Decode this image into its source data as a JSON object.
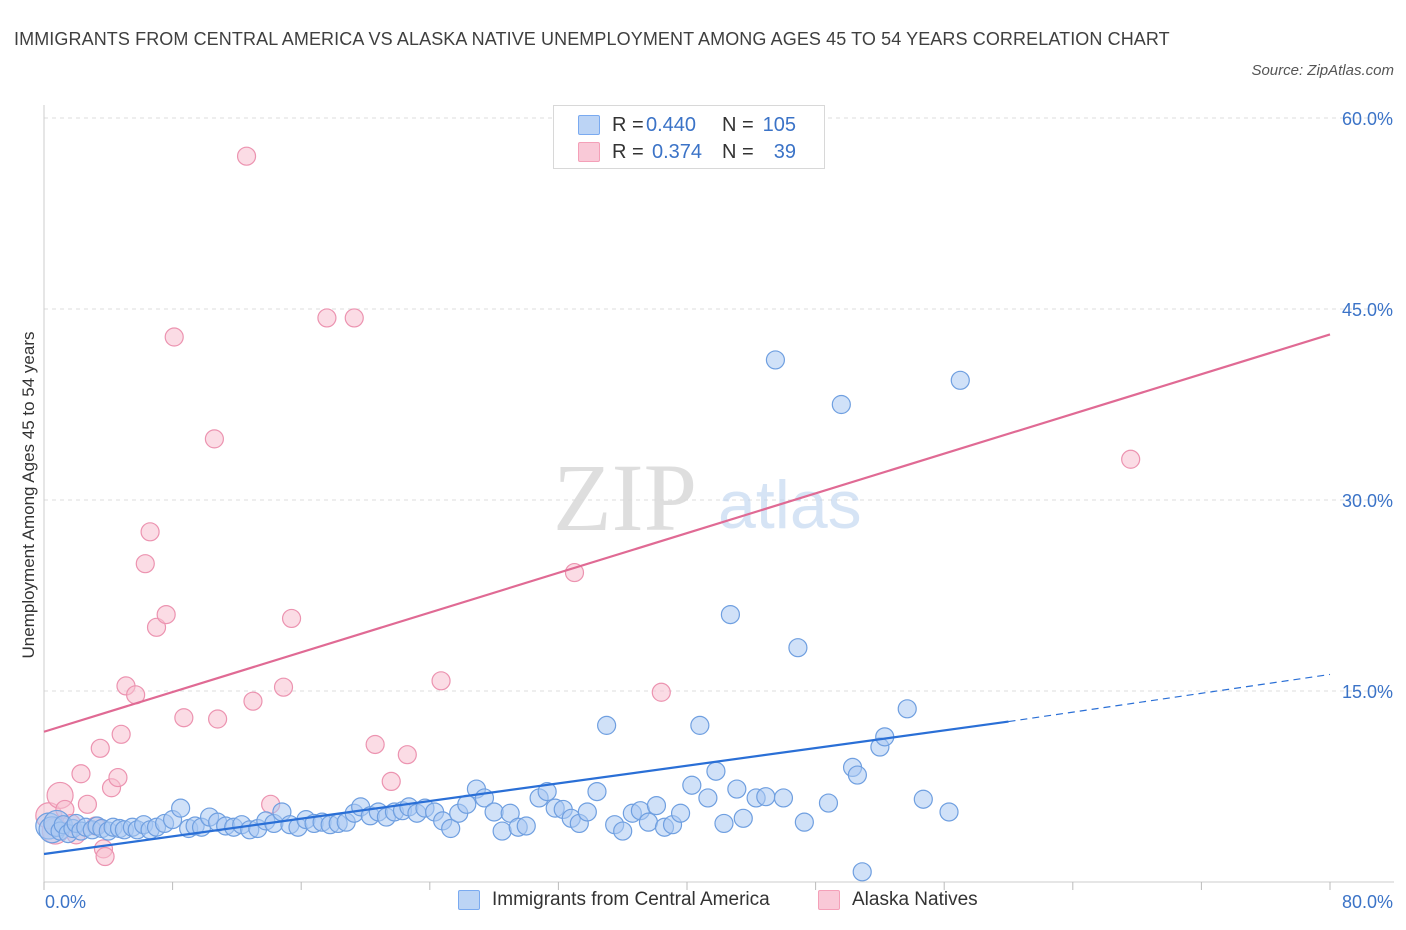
{
  "title": "IMMIGRANTS FROM CENTRAL AMERICA VS ALASKA NATIVE UNEMPLOYMENT AMONG AGES 45 TO 54 YEARS CORRELATION CHART",
  "source": "Source: ZipAtlas.com",
  "watermark": {
    "zip": "ZIP",
    "atlas": "atlas"
  },
  "legend": {
    "rows": [
      {
        "r_label": "R =",
        "r_value": "0.440",
        "n_label": "N =",
        "n_value": "105",
        "color": "#7aaaf0"
      },
      {
        "r_label": "R =",
        "r_value": "0.374",
        "n_label": "N =",
        "n_value": "39",
        "color": "#f4a0b8"
      }
    ]
  },
  "bottom_legend": {
    "blue_label": "Immigrants from Central America",
    "pink_label": "Alaska Natives"
  },
  "colors": {
    "blue_fill": "#a9c8f2",
    "blue_stroke": "#6f9fe0",
    "blue_line": "#2a6fd6",
    "pink_fill": "#f7bfd0",
    "pink_stroke": "#ec93b0",
    "pink_line": "#e06a94",
    "tick_text": "#3b73c7",
    "grid": "#dddddd"
  },
  "chart_data": {
    "type": "scatter",
    "title": "IMMIGRANTS FROM CENTRAL AMERICA VS ALASKA NATIVE UNEMPLOYMENT AMONG AGES 45 TO 54 YEARS CORRELATION CHART",
    "xlabel": "",
    "ylabel": "Unemployment Among Ages 45 to 54 years",
    "xlim": [
      0,
      80
    ],
    "ylim": [
      0,
      60
    ],
    "x_tick_labels": [
      "0.0%",
      "80.0%"
    ],
    "y_ticks": [
      15,
      30,
      45,
      60
    ],
    "y_tick_labels": [
      "15.0%",
      "30.0%",
      "45.0%",
      "60.0%"
    ],
    "grid": true,
    "series": [
      {
        "name": "Immigrants from Central America",
        "color": "#a9c8f2",
        "points": [
          [
            0.3,
            4.4
          ],
          [
            0.5,
            4.1
          ],
          [
            0.8,
            4.6
          ],
          [
            1.0,
            4.0
          ],
          [
            1.2,
            4.5
          ],
          [
            1.5,
            3.8
          ],
          [
            1.8,
            4.2
          ],
          [
            2.0,
            4.6
          ],
          [
            2.3,
            4.0
          ],
          [
            2.6,
            4.3
          ],
          [
            3.0,
            4.1
          ],
          [
            3.3,
            4.4
          ],
          [
            3.6,
            4.2
          ],
          [
            4.0,
            4.0
          ],
          [
            4.3,
            4.3
          ],
          [
            4.7,
            4.2
          ],
          [
            5.0,
            4.1
          ],
          [
            5.5,
            4.3
          ],
          [
            5.8,
            4.1
          ],
          [
            6.2,
            4.5
          ],
          [
            6.6,
            4.1
          ],
          [
            7.0,
            4.3
          ],
          [
            7.5,
            4.6
          ],
          [
            8.0,
            4.9
          ],
          [
            8.5,
            5.8
          ],
          [
            9.0,
            4.2
          ],
          [
            9.4,
            4.4
          ],
          [
            9.8,
            4.3
          ],
          [
            10.3,
            5.1
          ],
          [
            10.8,
            4.7
          ],
          [
            11.3,
            4.4
          ],
          [
            11.8,
            4.3
          ],
          [
            12.3,
            4.5
          ],
          [
            12.8,
            4.1
          ],
          [
            13.3,
            4.2
          ],
          [
            13.8,
            4.8
          ],
          [
            14.3,
            4.6
          ],
          [
            14.8,
            5.5
          ],
          [
            15.3,
            4.5
          ],
          [
            15.8,
            4.3
          ],
          [
            16.3,
            4.9
          ],
          [
            16.8,
            4.6
          ],
          [
            17.3,
            4.7
          ],
          [
            17.8,
            4.5
          ],
          [
            18.3,
            4.6
          ],
          [
            18.8,
            4.7
          ],
          [
            19.3,
            5.4
          ],
          [
            19.7,
            5.9
          ],
          [
            20.3,
            5.2
          ],
          [
            20.8,
            5.5
          ],
          [
            21.3,
            5.1
          ],
          [
            21.8,
            5.5
          ],
          [
            22.3,
            5.6
          ],
          [
            22.7,
            5.9
          ],
          [
            23.2,
            5.4
          ],
          [
            23.7,
            5.8
          ],
          [
            24.3,
            5.5
          ],
          [
            24.8,
            4.8
          ],
          [
            25.3,
            4.2
          ],
          [
            25.8,
            5.4
          ],
          [
            26.3,
            6.1
          ],
          [
            26.9,
            7.3
          ],
          [
            27.4,
            6.6
          ],
          [
            28.0,
            5.5
          ],
          [
            28.5,
            4.0
          ],
          [
            29.0,
            5.4
          ],
          [
            29.5,
            4.3
          ],
          [
            30.0,
            4.4
          ],
          [
            30.8,
            6.6
          ],
          [
            31.3,
            7.1
          ],
          [
            31.8,
            5.8
          ],
          [
            32.3,
            5.7
          ],
          [
            32.8,
            5.0
          ],
          [
            33.3,
            4.6
          ],
          [
            33.8,
            5.5
          ],
          [
            34.4,
            7.1
          ],
          [
            35.0,
            12.3
          ],
          [
            35.5,
            4.5
          ],
          [
            36.0,
            4.0
          ],
          [
            36.6,
            5.4
          ],
          [
            37.1,
            5.6
          ],
          [
            37.6,
            4.7
          ],
          [
            38.1,
            6.0
          ],
          [
            38.6,
            4.3
          ],
          [
            39.1,
            4.5
          ],
          [
            39.6,
            5.4
          ],
          [
            40.3,
            7.6
          ],
          [
            40.8,
            12.3
          ],
          [
            41.3,
            6.6
          ],
          [
            41.8,
            8.7
          ],
          [
            42.3,
            4.6
          ],
          [
            43.1,
            7.3
          ],
          [
            43.5,
            5.0
          ],
          [
            44.3,
            6.6
          ],
          [
            44.9,
            6.7
          ],
          [
            45.5,
            41.0
          ],
          [
            46.0,
            6.6
          ],
          [
            46.9,
            18.4
          ],
          [
            47.3,
            4.7
          ],
          [
            48.8,
            6.2
          ],
          [
            49.6,
            37.5
          ],
          [
            50.3,
            9.0
          ],
          [
            50.6,
            8.4
          ],
          [
            50.9,
            0.8
          ],
          [
            52.0,
            10.6
          ],
          [
            52.3,
            11.4
          ],
          [
            53.7,
            13.6
          ],
          [
            54.7,
            6.5
          ],
          [
            56.3,
            5.5
          ],
          [
            57.0,
            39.4
          ],
          [
            42.7,
            21.0
          ]
        ],
        "trend": {
          "x0": 0,
          "y0": 2.2,
          "x1": 60,
          "y1": 12.6,
          "dashed_to_x": 80,
          "dashed_to_y": 16.3
        }
      },
      {
        "name": "Alaska Natives",
        "color": "#f7bfd0",
        "points": [
          [
            0.3,
            5.2
          ],
          [
            0.7,
            4.0
          ],
          [
            1.0,
            6.8
          ],
          [
            1.3,
            5.7
          ],
          [
            1.7,
            4.6
          ],
          [
            2.0,
            3.7
          ],
          [
            2.3,
            8.5
          ],
          [
            2.7,
            6.1
          ],
          [
            3.2,
            4.4
          ],
          [
            3.5,
            10.5
          ],
          [
            3.7,
            2.6
          ],
          [
            3.8,
            2.0
          ],
          [
            4.2,
            7.4
          ],
          [
            4.6,
            8.2
          ],
          [
            4.8,
            11.6
          ],
          [
            5.1,
            15.4
          ],
          [
            5.7,
            14.7
          ],
          [
            6.3,
            25.0
          ],
          [
            6.6,
            27.5
          ],
          [
            7.0,
            20.0
          ],
          [
            7.6,
            21.0
          ],
          [
            8.1,
            42.8
          ],
          [
            8.7,
            12.9
          ],
          [
            10.6,
            34.8
          ],
          [
            10.8,
            12.8
          ],
          [
            12.6,
            57.0
          ],
          [
            13.0,
            14.2
          ],
          [
            14.1,
            6.1
          ],
          [
            14.9,
            15.3
          ],
          [
            15.4,
            20.7
          ],
          [
            17.6,
            44.3
          ],
          [
            19.3,
            44.3
          ],
          [
            20.6,
            10.8
          ],
          [
            21.6,
            7.9
          ],
          [
            22.6,
            10.0
          ],
          [
            24.7,
            15.8
          ],
          [
            33.0,
            24.3
          ],
          [
            38.4,
            14.9
          ],
          [
            67.6,
            33.2
          ]
        ],
        "trend": {
          "x0": 0,
          "y0": 11.8,
          "x1": 80,
          "y1": 43.0
        }
      }
    ]
  }
}
